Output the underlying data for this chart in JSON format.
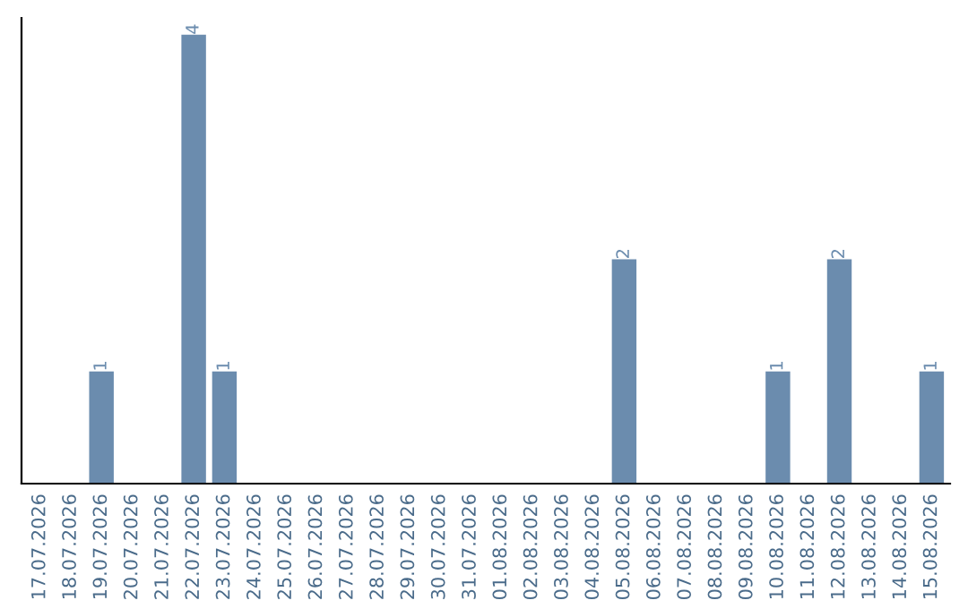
{
  "chart_data": {
    "type": "bar",
    "categories": [
      "17.07.2026",
      "18.07.2026",
      "19.07.2026",
      "20.07.2026",
      "21.07.2026",
      "22.07.2026",
      "23.07.2026",
      "24.07.2026",
      "25.07.2026",
      "26.07.2026",
      "27.07.2026",
      "28.07.2026",
      "29.07.2026",
      "30.07.2026",
      "31.07.2026",
      "01.08.2026",
      "02.08.2026",
      "03.08.2026",
      "04.08.2026",
      "05.08.2026",
      "06.08.2026",
      "07.08.2026",
      "08.08.2026",
      "09.08.2026",
      "10.08.2026",
      "11.08.2026",
      "12.08.2026",
      "13.08.2026",
      "14.08.2026",
      "15.08.2026"
    ],
    "values": [
      0,
      0,
      1,
      0,
      0,
      4,
      1,
      0,
      0,
      0,
      0,
      0,
      0,
      0,
      0,
      0,
      0,
      0,
      0,
      2,
      0,
      0,
      0,
      0,
      1,
      0,
      2,
      0,
      0,
      1
    ],
    "value_labels": [
      null,
      null,
      "1",
      null,
      null,
      "4",
      "1",
      null,
      null,
      null,
      null,
      null,
      null,
      null,
      null,
      null,
      null,
      null,
      null,
      "2",
      null,
      null,
      null,
      null,
      "1",
      null,
      "2",
      null,
      null,
      "1"
    ],
    "color": "#6b8cae",
    "ylim": [
      0,
      4.15
    ],
    "tick_labels": "x",
    "grid": false
  }
}
